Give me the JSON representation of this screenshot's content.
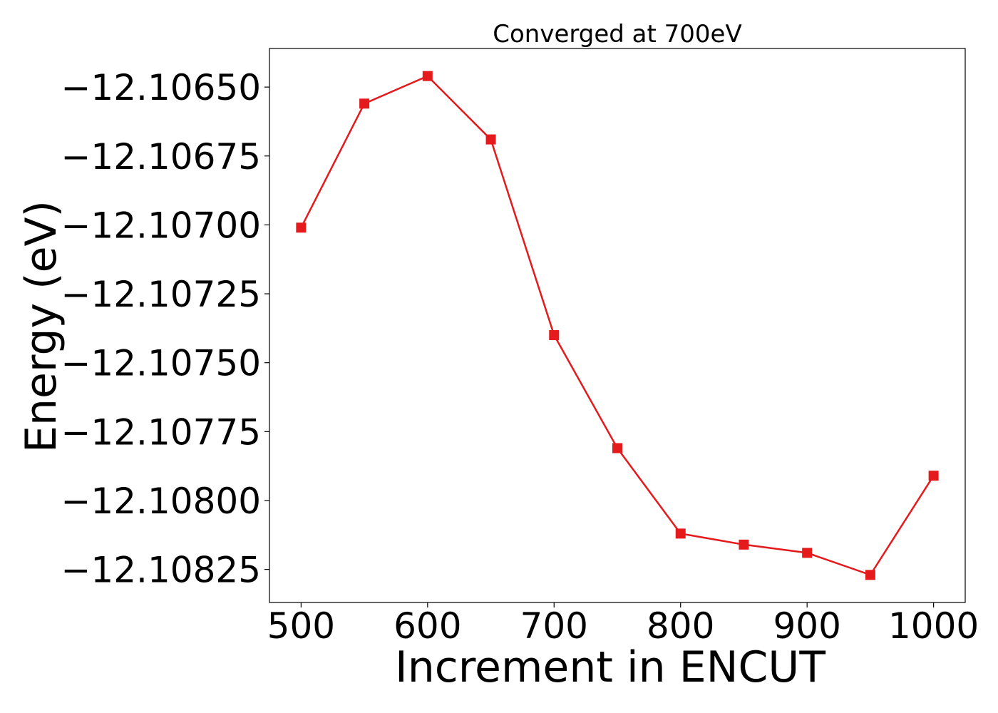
{
  "chart_data": {
    "type": "line",
    "title": "Converged at 700eV",
    "xlabel": "Increment in ENCUT",
    "ylabel": "Energy (eV)",
    "xlim": [
      475,
      1025
    ],
    "ylim": [
      -12.10837,
      -12.10636
    ],
    "x_ticks": [
      500,
      600,
      700,
      800,
      900,
      1000
    ],
    "x_tick_labels": [
      "500",
      "600",
      "700",
      "800",
      "900",
      "1000"
    ],
    "y_ticks": [
      -12.1065,
      -12.10675,
      -12.107,
      -12.10725,
      -12.1075,
      -12.10775,
      -12.108,
      -12.10825
    ],
    "y_tick_labels": [
      "−12.10650",
      "−12.10675",
      "−12.10700",
      "−12.10725",
      "−12.10750",
      "−12.10775",
      "−12.10800",
      "−12.10825"
    ],
    "grid": false,
    "legend": "none",
    "series": [
      {
        "color": "#e41a1c",
        "marker": "square",
        "x": [
          500,
          550,
          600,
          650,
          700,
          750,
          800,
          850,
          900,
          950,
          1000
        ],
        "y": [
          -12.10701,
          -12.10656,
          -12.10646,
          -12.10669,
          -12.1074,
          -12.10781,
          -12.10812,
          -12.10816,
          -12.10819,
          -12.10827,
          -12.10791
        ]
      }
    ]
  }
}
